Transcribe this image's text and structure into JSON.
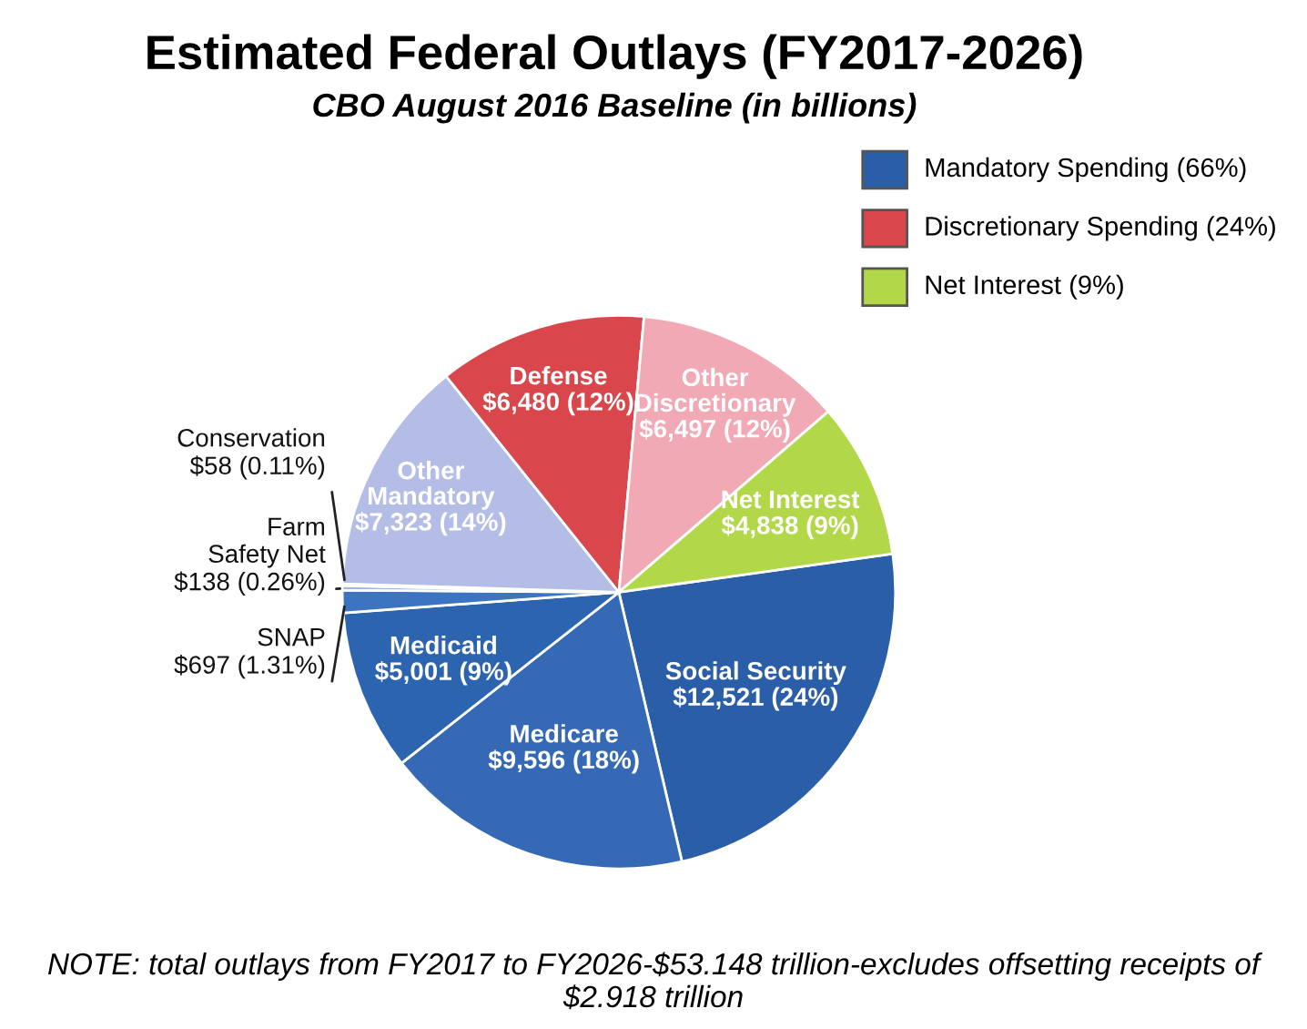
{
  "chart_data": {
    "type": "pie",
    "title": "Estimated Federal Outlays (FY2017-2026)",
    "subtitle": "CBO August 2016 Baseline (in billions)",
    "categories": [
      "Social Security",
      "Medicare",
      "Medicaid",
      "SNAP",
      "Farm Safety Net",
      "Conservation",
      "Other Mandatory",
      "Defense",
      "Other Discretionary",
      "Net Interest"
    ],
    "values": [
      12521,
      9596,
      5001,
      697,
      138,
      58,
      7323,
      6480,
      6497,
      4838
    ],
    "value_labels": [
      "$12,521 (24%)",
      "$9,596 (18%)",
      "$5,001 (9%)",
      "$697 (1.31%)",
      "$138 (0.26%)",
      "$58 (0.11%)",
      "$7,323 (14%)",
      "$6,480 (12%)",
      "$6,497 (12%)",
      "$4,838 (9%)"
    ],
    "colors": [
      "#2a5ea8",
      "#3569b5",
      "#2c64b0",
      "#3d74c2",
      "#9fb6e0",
      "#eef1fa",
      "#b4bde6",
      "#d9464b",
      "#f0a9b5",
      "#b2d84a"
    ],
    "annotations": [
      "Mandatory Spending (66%)",
      "Discretionary Spending (24%)",
      "Net Interest (9%)",
      "NOTE: total outlays from FY2017 to FY2026-$53.148 trillion-excludes offsetting receipts of $2.918 trillion"
    ]
  }
}
